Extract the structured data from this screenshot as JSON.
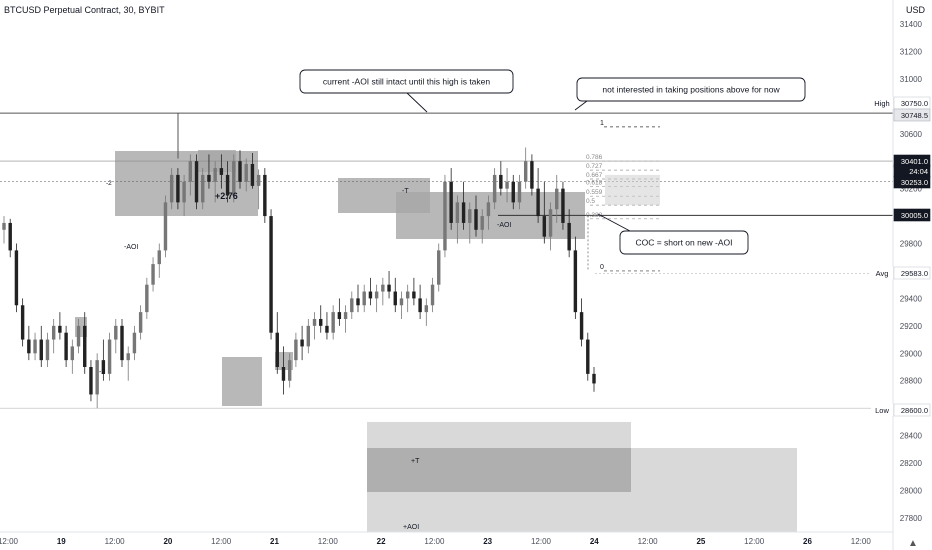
{
  "header": {
    "symbol_title": "BTCUSD Perpetual Contract, 30, BYBIT",
    "currency": "USD"
  },
  "colors": {
    "candle_up": "#777777",
    "candle_down": "#222222",
    "zone_dark": "#a6a6a6",
    "zone_light": "#d0d0d0",
    "text": "#131722",
    "axis_text": "#4a4e59"
  },
  "chart_data": {
    "type": "candlestick",
    "ylim": [
      27650,
      31560
    ],
    "price_ticks": [
      31400,
      31200,
      31000,
      30750,
      30600,
      30400,
      30200,
      30000,
      29800,
      29600,
      29400,
      29200,
      29000,
      28800,
      28600,
      28400,
      28200,
      28000,
      27800
    ],
    "x_tick_labels": [
      "12:00",
      "19",
      "12:00",
      "20",
      "12:00",
      "21",
      "12:00",
      "22",
      "12:00",
      "23",
      "12:00",
      "24",
      "12:00",
      "25",
      "12:00",
      "26",
      "12:00"
    ],
    "price_labels": [
      {
        "tag": "High",
        "value": "30750.0",
        "style": "plain"
      },
      {
        "tag": "",
        "value": "30748.5",
        "style": "grey"
      },
      {
        "tag": "",
        "value": "30401.0",
        "style": "dark"
      },
      {
        "tag": "",
        "value": "24:04",
        "style": "dark"
      },
      {
        "tag": "",
        "value": "30253.0",
        "style": "dark"
      },
      {
        "tag": "",
        "value": "30005.0",
        "style": "dark"
      },
      {
        "tag": "Avg",
        "value": "29583.0",
        "style": "plain"
      },
      {
        "tag": "Low",
        "value": "28600.0",
        "style": "plain"
      }
    ],
    "horizontal_levels": [
      30750,
      30401,
      30253,
      30005,
      29583,
      28600
    ],
    "fib_levels": [
      {
        "label": "1",
        "value": 30650
      },
      {
        "label": "0.786",
        "value": 30400
      },
      {
        "label": "0.727",
        "value": 30335
      },
      {
        "label": "0.667",
        "value": 30270
      },
      {
        "label": "0.618",
        "value": 30215
      },
      {
        "label": "0.559",
        "value": 30145
      },
      {
        "label": "0.5",
        "value": 30080
      },
      {
        "label": "0.382",
        "value": 29980
      },
      {
        "label": "0",
        "value": 29600
      }
    ],
    "zone_labels": [
      {
        "text": "-2"
      },
      {
        "text": "+2.76"
      },
      {
        "text": "-AOI"
      },
      {
        "text": "-2"
      },
      {
        "text": "-T"
      },
      {
        "text": "-AOI"
      },
      {
        "text": "+T"
      },
      {
        "text": "+AOI"
      }
    ],
    "callouts": [
      {
        "text": "current -AOI still intact until this high is taken"
      },
      {
        "text": "not interested in taking positions above for now"
      },
      {
        "text": "COC = short on new -AOI"
      }
    ],
    "candles": [
      [
        29900,
        30000,
        29800,
        29950
      ],
      [
        29950,
        29980,
        29700,
        29750
      ],
      [
        29750,
        29800,
        29300,
        29350
      ],
      [
        29350,
        29400,
        29050,
        29100
      ],
      [
        29100,
        29200,
        28950,
        29000
      ],
      [
        29000,
        29150,
        28950,
        29100
      ],
      [
        29100,
        29200,
        28900,
        28950
      ],
      [
        28950,
        29150,
        28900,
        29100
      ],
      [
        29100,
        29250,
        29000,
        29200
      ],
      [
        29200,
        29300,
        29100,
        29150
      ],
      [
        29150,
        29200,
        28900,
        28950
      ],
      [
        28950,
        29100,
        28850,
        29050
      ],
      [
        29050,
        29250,
        29000,
        29200
      ],
      [
        29200,
        29300,
        28850,
        28900
      ],
      [
        28900,
        28950,
        28650,
        28700
      ],
      [
        28700,
        29000,
        28600,
        28950
      ],
      [
        28950,
        29100,
        28800,
        28850
      ],
      [
        28850,
        29150,
        28800,
        29100
      ],
      [
        29100,
        29250,
        29000,
        29200
      ],
      [
        29200,
        29250,
        28900,
        28950
      ],
      [
        28950,
        29050,
        28800,
        29000
      ],
      [
        29000,
        29200,
        28950,
        29150
      ],
      [
        29150,
        29350,
        29100,
        29300
      ],
      [
        29300,
        29550,
        29250,
        29500
      ],
      [
        29500,
        29700,
        29450,
        29650
      ],
      [
        29650,
        29800,
        29550,
        29750
      ],
      [
        29750,
        30150,
        29700,
        30100
      ],
      [
        30100,
        30350,
        30050,
        30300
      ],
      [
        30300,
        30350,
        30050,
        30100
      ],
      [
        30100,
        30300,
        30000,
        30250
      ],
      [
        30250,
        30450,
        30150,
        30400
      ],
      [
        30400,
        30450,
        30050,
        30100
      ],
      [
        30100,
        30350,
        30050,
        30300
      ],
      [
        30300,
        30450,
        30200,
        30250
      ],
      [
        30250,
        30400,
        30100,
        30350
      ],
      [
        30350,
        30450,
        30200,
        30300
      ],
      [
        30300,
        30400,
        30100,
        30150
      ],
      [
        30150,
        30450,
        30100,
        30400
      ],
      [
        30400,
        30480,
        30200,
        30250
      ],
      [
        30250,
        30420,
        30180,
        30380
      ],
      [
        30380,
        30460,
        30200,
        30220
      ],
      [
        30220,
        30340,
        30050,
        30300
      ],
      [
        30300,
        30350,
        29950,
        30000
      ],
      [
        30000,
        30050,
        29100,
        29150
      ],
      [
        29150,
        29300,
        28850,
        28900
      ],
      [
        28900,
        29050,
        28700,
        28800
      ],
      [
        28800,
        29000,
        28750,
        28950
      ],
      [
        28950,
        29150,
        28900,
        29100
      ],
      [
        29100,
        29200,
        28950,
        29050
      ],
      [
        29050,
        29250,
        29000,
        29200
      ],
      [
        29200,
        29300,
        29100,
        29250
      ],
      [
        29250,
        29350,
        29150,
        29200
      ],
      [
        29200,
        29300,
        29100,
        29150
      ],
      [
        29150,
        29350,
        29100,
        29300
      ],
      [
        29300,
        29400,
        29200,
        29250
      ],
      [
        29250,
        29350,
        29150,
        29300
      ],
      [
        29300,
        29450,
        29250,
        29400
      ],
      [
        29400,
        29500,
        29300,
        29350
      ],
      [
        29350,
        29500,
        29300,
        29450
      ],
      [
        29450,
        29550,
        29350,
        29400
      ],
      [
        29400,
        29500,
        29300,
        29450
      ],
      [
        29450,
        29550,
        29350,
        29500
      ],
      [
        29500,
        29600,
        29400,
        29450
      ],
      [
        29450,
        29550,
        29300,
        29350
      ],
      [
        29350,
        29450,
        29250,
        29400
      ],
      [
        29400,
        29500,
        29300,
        29450
      ],
      [
        29450,
        29550,
        29350,
        29400
      ],
      [
        29400,
        29500,
        29250,
        29300
      ],
      [
        29300,
        29400,
        29200,
        29350
      ],
      [
        29350,
        29550,
        29300,
        29500
      ],
      [
        29500,
        29800,
        29450,
        29750
      ],
      [
        29750,
        30300,
        29700,
        30250
      ],
      [
        30250,
        30350,
        29900,
        29950
      ],
      [
        29950,
        30150,
        29800,
        30100
      ],
      [
        30100,
        30250,
        29900,
        29950
      ],
      [
        29950,
        30100,
        29800,
        30050
      ],
      [
        30050,
        30150,
        29850,
        29900
      ],
      [
        29900,
        30050,
        29800,
        30000
      ],
      [
        30000,
        30150,
        29900,
        30100
      ],
      [
        30100,
        30350,
        30050,
        30300
      ],
      [
        30300,
        30400,
        30150,
        30200
      ],
      [
        30200,
        30350,
        30100,
        30250
      ],
      [
        30250,
        30300,
        30050,
        30100
      ],
      [
        30100,
        30300,
        30050,
        30250
      ],
      [
        30250,
        30500,
        30200,
        30400
      ],
      [
        30400,
        30450,
        30150,
        30200
      ],
      [
        30200,
        30350,
        29950,
        30000
      ],
      [
        30000,
        30250,
        29800,
        29850
      ],
      [
        29850,
        30100,
        29750,
        30050
      ],
      [
        30050,
        30300,
        29950,
        30200
      ],
      [
        30200,
        30250,
        29900,
        29950
      ],
      [
        29950,
        30050,
        29700,
        29750
      ],
      [
        29750,
        29850,
        29250,
        29300
      ],
      [
        29300,
        29400,
        29050,
        29100
      ],
      [
        29100,
        29150,
        28800,
        28850
      ],
      [
        28850,
        28900,
        28720,
        28780
      ]
    ]
  }
}
